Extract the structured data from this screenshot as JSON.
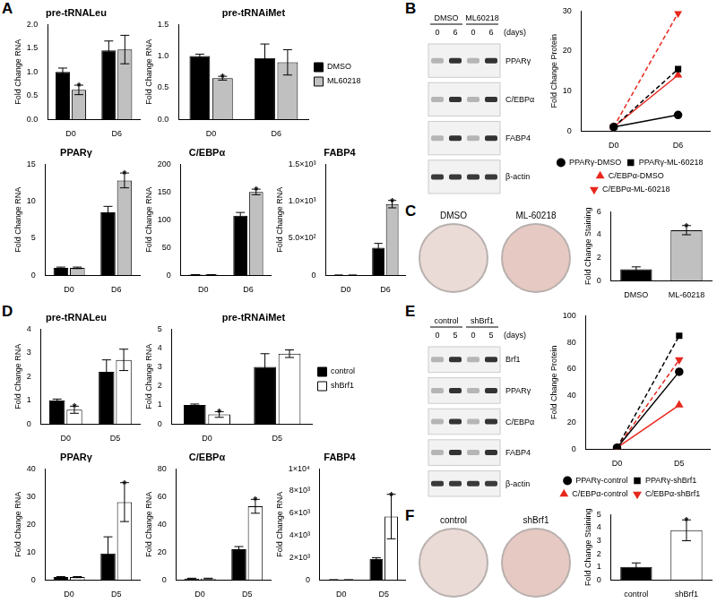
{
  "panels": [
    "A",
    "B",
    "C",
    "D",
    "E",
    "F"
  ],
  "chart_data": [
    {
      "type": "bar",
      "title": "pre-tRNALeu",
      "y_label": "Fold Change RNA",
      "categories": [
        "D0",
        "D6"
      ],
      "series": [
        {
          "name": "DMSO",
          "color": "#000000",
          "values": [
            1.0,
            1.45
          ],
          "errors": [
            0.08,
            0.2
          ]
        },
        {
          "name": "ML60218",
          "color": "#c0c0c0",
          "values": [
            0.62,
            1.47
          ],
          "errors": [
            0.1,
            0.3
          ]
        }
      ],
      "ylim": [
        0,
        2
      ],
      "yticks": [
        {
          "value": 0,
          "label": "0.0"
        },
        0.5,
        {
          "value": 1,
          "label": "1.0"
        },
        1.5,
        {
          "value": 2,
          "label": "2.0"
        }
      ],
      "grid": false,
      "annotations": [
        {
          "category": "D0",
          "series": "ML60218",
          "text": "*"
        }
      ]
    },
    {
      "type": "bar",
      "title": "pre-tRNAiMet",
      "y_label": "Fold Change RNA",
      "categories": [
        "D0",
        "D6"
      ],
      "series": [
        {
          "name": "DMSO",
          "color": "#000000",
          "values": [
            1.0,
            0.97
          ],
          "errors": [
            0.03,
            0.22
          ]
        },
        {
          "name": "ML60218",
          "color": "#c0c0c0",
          "values": [
            0.65,
            0.9
          ],
          "errors": [
            0.03,
            0.2
          ]
        }
      ],
      "ylim": [
        0,
        1.5
      ],
      "yticks": [
        {
          "value": 0,
          "label": "0.0"
        },
        0.5,
        {
          "value": 1,
          "label": "1.0"
        },
        1.5
      ],
      "grid": false,
      "legend": "right",
      "annotations": [
        {
          "category": "D0",
          "series": "ML60218",
          "text": "*"
        }
      ]
    },
    {
      "type": "bar",
      "title": "PPARγ",
      "y_label": "Fold Change RNA",
      "categories": [
        "D0",
        "D6"
      ],
      "series": [
        {
          "name": "DMSO",
          "color": "#000000",
          "values": [
            1.0,
            8.5
          ],
          "errors": [
            0.1,
            0.8
          ]
        },
        {
          "name": "ML60218",
          "color": "#c0c0c0",
          "values": [
            1.0,
            12.8
          ],
          "errors": [
            0.1,
            1.0
          ]
        }
      ],
      "ylim": [
        0,
        15
      ],
      "yticks": [
        0,
        5,
        10,
        15
      ],
      "grid": false,
      "annotations": [
        {
          "category": "D6",
          "series": "ML60218",
          "text": "*"
        }
      ]
    },
    {
      "type": "bar",
      "title": "C/EBPα",
      "y_label": "Fold Change RNA",
      "categories": [
        "D0",
        "D6"
      ],
      "series": [
        {
          "name": "DMSO",
          "color": "#000000",
          "values": [
            1.0,
            107
          ],
          "errors": [
            0.2,
            6
          ]
        },
        {
          "name": "ML60218",
          "color": "#c0c0c0",
          "values": [
            1.0,
            150
          ],
          "errors": [
            0.2,
            5
          ]
        }
      ],
      "ylim": [
        0,
        200
      ],
      "yticks": [
        0,
        50,
        100,
        150,
        200
      ],
      "grid": false,
      "annotations": [
        {
          "category": "D6",
          "series": "ML60218",
          "text": "*"
        }
      ]
    },
    {
      "type": "bar",
      "title": "FABP4",
      "y_label": "Fold Change RNA",
      "categories": [
        "D0",
        "D6"
      ],
      "series": [
        {
          "name": "DMSO",
          "color": "#000000",
          "values": [
            1.0,
            370
          ],
          "errors": [
            0.2,
            60
          ]
        },
        {
          "name": "ML60218",
          "color": "#c0c0c0",
          "values": [
            1.0,
            960
          ],
          "errors": [
            0.2,
            50
          ]
        }
      ],
      "ylim": [
        0,
        1500
      ],
      "yticks": [
        0,
        {
          "value": 500,
          "label": "5.0×10²"
        },
        {
          "value": 1000,
          "label": "1.0×10³"
        },
        {
          "value": 1500,
          "label": "1.5×10³"
        }
      ],
      "grid": false,
      "annotations": [
        {
          "category": "D6",
          "series": "ML60218",
          "text": "*"
        }
      ]
    },
    {
      "type": "line",
      "y_label": "Fold Change Protein",
      "categories": [
        "D0",
        "D6"
      ],
      "series": [
        {
          "name": "PPARγ-DMSO",
          "color": "#000000",
          "values": [
            1,
            4
          ],
          "marker": "circle",
          "line_style": "solid"
        },
        {
          "name": "PPARγ-ML-60218",
          "color": "#000000",
          "values": [
            1,
            15.5
          ],
          "marker": "square",
          "line_style": "dashed"
        },
        {
          "name": "C/EBPα-DMSO",
          "color": "#e8281e",
          "values": [
            1,
            14
          ],
          "marker": "triangle",
          "line_style": "solid"
        },
        {
          "name": "C/EBPα-ML-60218",
          "color": "#e8281e",
          "values": [
            1,
            29.5
          ],
          "marker": "triangle-down",
          "line_style": "dashed"
        }
      ],
      "ylim": [
        0,
        30
      ],
      "yticks": [
        0,
        10,
        20,
        30
      ],
      "grid": false,
      "legend": "bottom"
    },
    {
      "type": "bar",
      "y_label": "Fold Change Staining",
      "categories": [
        "DMSO",
        "ML-60218"
      ],
      "values": [
        1.0,
        4.4
      ],
      "errors": [
        0.2,
        0.4
      ],
      "colors": [
        "#000000",
        "#c0c0c0"
      ],
      "ylim": [
        0,
        6
      ],
      "yticks": [
        0,
        2,
        4,
        6
      ],
      "grid": false,
      "annotations": [
        {
          "category": "ML-60218",
          "text": "*"
        }
      ]
    },
    {
      "type": "bar",
      "title": "pre-tRNALeu",
      "y_label": "Fold Change RNA",
      "categories": [
        "D0",
        "D5"
      ],
      "series": [
        {
          "name": "control",
          "color": "#000000",
          "values": [
            1.0,
            2.2
          ],
          "errors": [
            0.05,
            0.5
          ]
        },
        {
          "name": "shBrf1",
          "color": "#ffffff",
          "values": [
            0.6,
            2.7
          ],
          "errors": [
            0.15,
            0.45
          ]
        }
      ],
      "ylim": [
        0,
        4
      ],
      "yticks": [
        0,
        1,
        2,
        3,
        4
      ],
      "grid": false,
      "annotations": [
        {
          "category": "D0",
          "series": "shBrf1",
          "text": "*"
        }
      ]
    },
    {
      "type": "bar",
      "title": "pre-tRNAiMet",
      "y_label": "Fold Change RNA",
      "categories": [
        "D0",
        "D5"
      ],
      "series": [
        {
          "name": "control",
          "color": "#000000",
          "values": [
            1.0,
            3.0
          ],
          "errors": [
            0.05,
            0.7
          ]
        },
        {
          "name": "shBrf1",
          "color": "#ffffff",
          "values": [
            0.5,
            3.7
          ],
          "errors": [
            0.15,
            0.2
          ]
        }
      ],
      "ylim": [
        0,
        5
      ],
      "yticks": [
        0,
        1,
        2,
        3,
        4,
        5
      ],
      "grid": false,
      "legend": "right",
      "annotations": [
        {
          "category": "D0",
          "series": "shBrf1",
          "text": "*"
        }
      ]
    },
    {
      "type": "bar",
      "title": "PPARγ",
      "y_label": "Fold Change RNA",
      "categories": [
        "D0",
        "D5"
      ],
      "series": [
        {
          "name": "control",
          "color": "#000000",
          "values": [
            1.0,
            9.5
          ],
          "errors": [
            0.2,
            6
          ]
        },
        {
          "name": "shBrf1",
          "color": "#ffffff",
          "values": [
            1.0,
            28
          ],
          "errors": [
            0.2,
            7
          ]
        }
      ],
      "ylim": [
        0,
        40
      ],
      "yticks": [
        0,
        10,
        20,
        30,
        40
      ],
      "grid": false,
      "annotations": [
        {
          "category": "D5",
          "series": "shBrf1",
          "text": "*"
        }
      ]
    },
    {
      "type": "bar",
      "title": "C/EBPα",
      "y_label": "Fold Change RNA",
      "categories": [
        "D0",
        "D5"
      ],
      "series": [
        {
          "name": "control",
          "color": "#000000",
          "values": [
            1.0,
            22
          ],
          "errors": [
            0.2,
            2
          ]
        },
        {
          "name": "shBrf1",
          "color": "#ffffff",
          "values": [
            1.0,
            53
          ],
          "errors": [
            0.2,
            5
          ]
        }
      ],
      "ylim": [
        0,
        80
      ],
      "yticks": [
        0,
        20,
        40,
        60,
        80
      ],
      "grid": false,
      "annotations": [
        {
          "category": "D5",
          "series": "shBrf1",
          "text": "*"
        }
      ]
    },
    {
      "type": "bar",
      "title": "FABP4",
      "y_label": "Fold Change RNA",
      "categories": [
        "D0",
        "D5"
      ],
      "series": [
        {
          "name": "control",
          "color": "#000000",
          "values": [
            1,
            1900
          ],
          "errors": [
            0.2,
            100
          ]
        },
        {
          "name": "shBrf1",
          "color": "#ffffff",
          "values": [
            1,
            5700
          ],
          "errors": [
            0.2,
            2000
          ]
        }
      ],
      "ylim": [
        0,
        10000
      ],
      "yticks": [
        0,
        {
          "value": 2000,
          "label": "2×10³"
        },
        {
          "value": 4000,
          "label": "4×10³"
        },
        {
          "value": 6000,
          "label": "6×10³"
        },
        {
          "value": 8000,
          "label": "8×10³"
        },
        {
          "value": 10000,
          "label": "1×10⁴"
        }
      ],
      "grid": false,
      "annotations": [
        {
          "category": "D5",
          "series": "shBrf1",
          "text": "*"
        }
      ]
    },
    {
      "type": "line",
      "y_label": "Fold Change Protein",
      "categories": [
        "D0",
        "D5"
      ],
      "series": [
        {
          "name": "PPARγ-control",
          "color": "#000000",
          "values": [
            1,
            58
          ],
          "marker": "circle",
          "line_style": "solid"
        },
        {
          "name": "PPARγ-shBrf1",
          "color": "#000000",
          "values": [
            1,
            85
          ],
          "marker": "square",
          "line_style": "dashed"
        },
        {
          "name": "C/EBPα-control",
          "color": "#e8281e",
          "values": [
            1,
            33
          ],
          "marker": "triangle",
          "line_style": "solid"
        },
        {
          "name": "C/EBPα-shBrf1",
          "color": "#e8281e",
          "values": [
            1,
            67
          ],
          "marker": "triangle-down",
          "line_style": "dashed"
        }
      ],
      "ylim": [
        0,
        100
      ],
      "yticks": [
        0,
        20,
        40,
        60,
        80,
        100
      ],
      "grid": false,
      "legend": "bottom"
    },
    {
      "type": "bar",
      "y_label": "Fold Change Staining",
      "categories": [
        "control",
        "shBrf1"
      ],
      "values": [
        1.0,
        3.8
      ],
      "errors": [
        0.3,
        0.8
      ],
      "colors": [
        "#000000",
        "#ffffff"
      ],
      "ylim": [
        0,
        5
      ],
      "yticks": [
        0,
        1,
        2,
        3,
        4,
        5
      ],
      "grid": false,
      "annotations": [
        {
          "category": "shBrf1",
          "text": "*"
        }
      ]
    }
  ],
  "blots": [
    {
      "groups": [
        "DMSO",
        "ML60218"
      ],
      "days": [
        "0",
        "6",
        "0",
        "6"
      ],
      "unit": "(days)",
      "bands": [
        "PPARγ",
        "C/EBPα",
        "FABP4",
        "β-actin"
      ]
    },
    {
      "groups": [
        "control",
        "shBrf1"
      ],
      "days": [
        "0",
        "5",
        "0",
        "5"
      ],
      "unit": "(days)",
      "bands": [
        "Brf1",
        "PPARγ",
        "C/EBPα",
        "FABP4",
        "β-actin"
      ]
    }
  ],
  "stain_images": [
    [
      "DMSO",
      "ML-60218"
    ],
    [
      "control",
      "shBrf1"
    ]
  ]
}
